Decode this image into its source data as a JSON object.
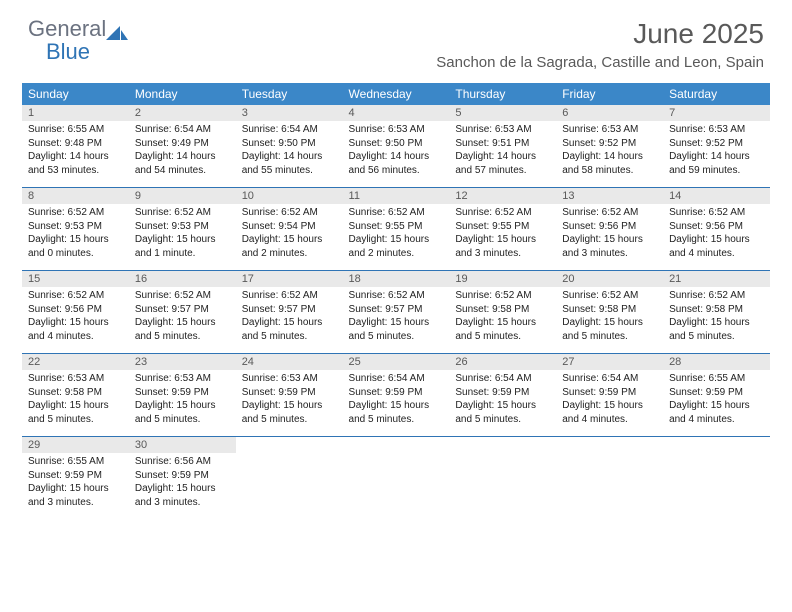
{
  "brand": {
    "general": "General",
    "blue": "Blue"
  },
  "title": "June 2025",
  "location": "Sanchon de la Sagrada, Castille and Leon, Spain",
  "colors": {
    "header_bg": "#3b87c8",
    "rule": "#2f74b5",
    "daynum_bg": "#e9e9e9",
    "title_color": "#595959"
  },
  "day_headers": [
    "Sunday",
    "Monday",
    "Tuesday",
    "Wednesday",
    "Thursday",
    "Friday",
    "Saturday"
  ],
  "weeks": [
    [
      {
        "n": "1",
        "sr": "Sunrise: 6:55 AM",
        "ss": "Sunset: 9:48 PM",
        "d1": "Daylight: 14 hours",
        "d2": "and 53 minutes."
      },
      {
        "n": "2",
        "sr": "Sunrise: 6:54 AM",
        "ss": "Sunset: 9:49 PM",
        "d1": "Daylight: 14 hours",
        "d2": "and 54 minutes."
      },
      {
        "n": "3",
        "sr": "Sunrise: 6:54 AM",
        "ss": "Sunset: 9:50 PM",
        "d1": "Daylight: 14 hours",
        "d2": "and 55 minutes."
      },
      {
        "n": "4",
        "sr": "Sunrise: 6:53 AM",
        "ss": "Sunset: 9:50 PM",
        "d1": "Daylight: 14 hours",
        "d2": "and 56 minutes."
      },
      {
        "n": "5",
        "sr": "Sunrise: 6:53 AM",
        "ss": "Sunset: 9:51 PM",
        "d1": "Daylight: 14 hours",
        "d2": "and 57 minutes."
      },
      {
        "n": "6",
        "sr": "Sunrise: 6:53 AM",
        "ss": "Sunset: 9:52 PM",
        "d1": "Daylight: 14 hours",
        "d2": "and 58 minutes."
      },
      {
        "n": "7",
        "sr": "Sunrise: 6:53 AM",
        "ss": "Sunset: 9:52 PM",
        "d1": "Daylight: 14 hours",
        "d2": "and 59 minutes."
      }
    ],
    [
      {
        "n": "8",
        "sr": "Sunrise: 6:52 AM",
        "ss": "Sunset: 9:53 PM",
        "d1": "Daylight: 15 hours",
        "d2": "and 0 minutes."
      },
      {
        "n": "9",
        "sr": "Sunrise: 6:52 AM",
        "ss": "Sunset: 9:53 PM",
        "d1": "Daylight: 15 hours",
        "d2": "and 1 minute."
      },
      {
        "n": "10",
        "sr": "Sunrise: 6:52 AM",
        "ss": "Sunset: 9:54 PM",
        "d1": "Daylight: 15 hours",
        "d2": "and 2 minutes."
      },
      {
        "n": "11",
        "sr": "Sunrise: 6:52 AM",
        "ss": "Sunset: 9:55 PM",
        "d1": "Daylight: 15 hours",
        "d2": "and 2 minutes."
      },
      {
        "n": "12",
        "sr": "Sunrise: 6:52 AM",
        "ss": "Sunset: 9:55 PM",
        "d1": "Daylight: 15 hours",
        "d2": "and 3 minutes."
      },
      {
        "n": "13",
        "sr": "Sunrise: 6:52 AM",
        "ss": "Sunset: 9:56 PM",
        "d1": "Daylight: 15 hours",
        "d2": "and 3 minutes."
      },
      {
        "n": "14",
        "sr": "Sunrise: 6:52 AM",
        "ss": "Sunset: 9:56 PM",
        "d1": "Daylight: 15 hours",
        "d2": "and 4 minutes."
      }
    ],
    [
      {
        "n": "15",
        "sr": "Sunrise: 6:52 AM",
        "ss": "Sunset: 9:56 PM",
        "d1": "Daylight: 15 hours",
        "d2": "and 4 minutes."
      },
      {
        "n": "16",
        "sr": "Sunrise: 6:52 AM",
        "ss": "Sunset: 9:57 PM",
        "d1": "Daylight: 15 hours",
        "d2": "and 5 minutes."
      },
      {
        "n": "17",
        "sr": "Sunrise: 6:52 AM",
        "ss": "Sunset: 9:57 PM",
        "d1": "Daylight: 15 hours",
        "d2": "and 5 minutes."
      },
      {
        "n": "18",
        "sr": "Sunrise: 6:52 AM",
        "ss": "Sunset: 9:57 PM",
        "d1": "Daylight: 15 hours",
        "d2": "and 5 minutes."
      },
      {
        "n": "19",
        "sr": "Sunrise: 6:52 AM",
        "ss": "Sunset: 9:58 PM",
        "d1": "Daylight: 15 hours",
        "d2": "and 5 minutes."
      },
      {
        "n": "20",
        "sr": "Sunrise: 6:52 AM",
        "ss": "Sunset: 9:58 PM",
        "d1": "Daylight: 15 hours",
        "d2": "and 5 minutes."
      },
      {
        "n": "21",
        "sr": "Sunrise: 6:52 AM",
        "ss": "Sunset: 9:58 PM",
        "d1": "Daylight: 15 hours",
        "d2": "and 5 minutes."
      }
    ],
    [
      {
        "n": "22",
        "sr": "Sunrise: 6:53 AM",
        "ss": "Sunset: 9:58 PM",
        "d1": "Daylight: 15 hours",
        "d2": "and 5 minutes."
      },
      {
        "n": "23",
        "sr": "Sunrise: 6:53 AM",
        "ss": "Sunset: 9:59 PM",
        "d1": "Daylight: 15 hours",
        "d2": "and 5 minutes."
      },
      {
        "n": "24",
        "sr": "Sunrise: 6:53 AM",
        "ss": "Sunset: 9:59 PM",
        "d1": "Daylight: 15 hours",
        "d2": "and 5 minutes."
      },
      {
        "n": "25",
        "sr": "Sunrise: 6:54 AM",
        "ss": "Sunset: 9:59 PM",
        "d1": "Daylight: 15 hours",
        "d2": "and 5 minutes."
      },
      {
        "n": "26",
        "sr": "Sunrise: 6:54 AM",
        "ss": "Sunset: 9:59 PM",
        "d1": "Daylight: 15 hours",
        "d2": "and 5 minutes."
      },
      {
        "n": "27",
        "sr": "Sunrise: 6:54 AM",
        "ss": "Sunset: 9:59 PM",
        "d1": "Daylight: 15 hours",
        "d2": "and 4 minutes."
      },
      {
        "n": "28",
        "sr": "Sunrise: 6:55 AM",
        "ss": "Sunset: 9:59 PM",
        "d1": "Daylight: 15 hours",
        "d2": "and 4 minutes."
      }
    ],
    [
      {
        "n": "29",
        "sr": "Sunrise: 6:55 AM",
        "ss": "Sunset: 9:59 PM",
        "d1": "Daylight: 15 hours",
        "d2": "and 3 minutes."
      },
      {
        "n": "30",
        "sr": "Sunrise: 6:56 AM",
        "ss": "Sunset: 9:59 PM",
        "d1": "Daylight: 15 hours",
        "d2": "and 3 minutes."
      },
      null,
      null,
      null,
      null,
      null
    ]
  ]
}
